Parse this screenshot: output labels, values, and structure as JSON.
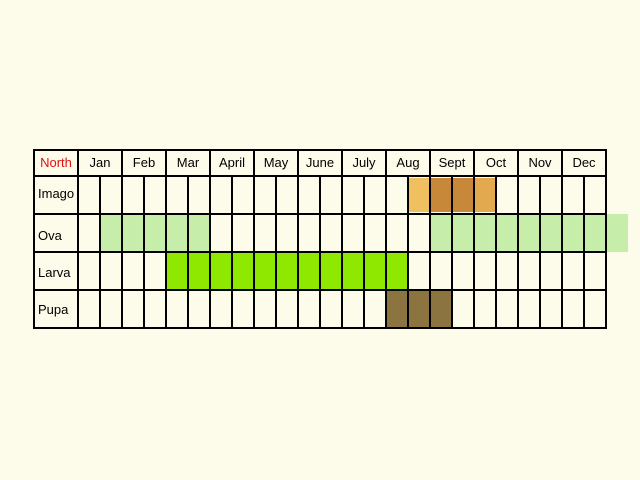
{
  "colors": {
    "background": "#fdfbea",
    "north_label": "#e01010",
    "line": "#000000",
    "imago_light": "#f0c060",
    "imago_mid": "#e3a94e",
    "imago_dark": "#c8883a",
    "ova": "#c6eeaa",
    "larva": "#8ee800",
    "pupa": "#8c7440"
  },
  "header": {
    "corner_label": "North",
    "months": [
      "Jan",
      "Feb",
      "Mar",
      "April",
      "May",
      "June",
      "July",
      "Aug",
      "Sept",
      "Oct",
      "Nov",
      "Dec"
    ]
  },
  "rows": [
    {
      "label": "Imago",
      "stage": "imago"
    },
    {
      "label": "Ova",
      "stage": "ova"
    },
    {
      "label": "Larva",
      "stage": "larva"
    },
    {
      "label": "Pupa",
      "stage": "pupa"
    }
  ],
  "chart_data": {
    "type": "table",
    "title": "",
    "periods_per_month": 2,
    "columns": [
      "Jan",
      "Feb",
      "Mar",
      "April",
      "May",
      "June",
      "July",
      "Aug",
      "Sept",
      "Oct",
      "Nov",
      "Dec"
    ],
    "series": [
      {
        "row": "Imago",
        "fills": [
          {
            "from": 15,
            "to": 15,
            "intensity": "light"
          },
          {
            "from": 16,
            "to": 17,
            "intensity": "dark"
          },
          {
            "from": 18,
            "to": 18,
            "intensity": "mid"
          }
        ]
      },
      {
        "row": "Ova",
        "fills": [
          {
            "from": 1,
            "to": 5,
            "intensity": "normal"
          },
          {
            "from": 16,
            "to": 24,
            "intensity": "normal"
          }
        ]
      },
      {
        "row": "Larva",
        "fills": [
          {
            "from": 4,
            "to": 14,
            "intensity": "normal"
          }
        ]
      },
      {
        "row": "Pupa",
        "fills": [
          {
            "from": 14,
            "to": 16,
            "intensity": "normal"
          }
        ]
      }
    ]
  }
}
